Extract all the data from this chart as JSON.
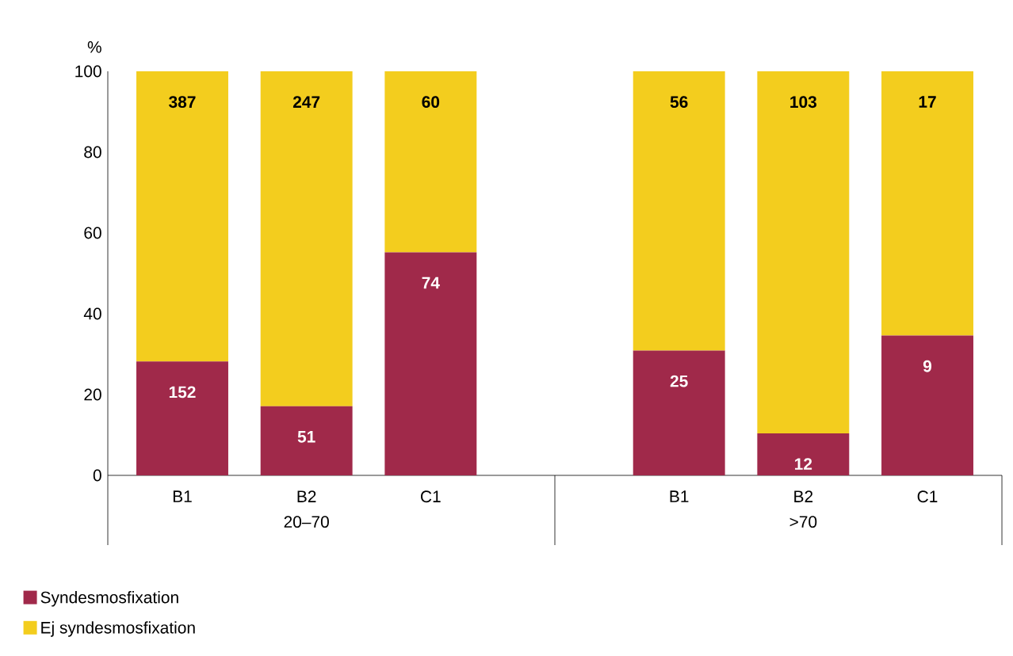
{
  "chart_data": {
    "type": "bar",
    "stacked": true,
    "ylabel": "%",
    "categories": [
      "B1",
      "B2",
      "C1",
      null,
      "B1",
      "B2",
      "C1"
    ],
    "series": [
      {
        "name": "Syndesmosfixation",
        "color": "#a0294a",
        "values": [
          28.2,
          17.1,
          55.2,
          null,
          30.9,
          10.4,
          34.6
        ]
      },
      {
        "name": "Ej syndesmosfixation",
        "color": "#f3cd1e",
        "values": [
          71.8,
          82.9,
          44.8,
          null,
          69.1,
          89.6,
          65.4
        ]
      }
    ],
    "annotations": [
      "20–70",
      ">70",
      "152",
      "51",
      "74",
      "25",
      "12",
      "9",
      "387",
      "247",
      "60",
      "56",
      "103",
      "17"
    ],
    "ylim": [
      0,
      100
    ],
    "yticks": [
      0,
      20,
      40,
      60,
      80,
      100
    ],
    "grid": false,
    "legend": "bottom left"
  }
}
